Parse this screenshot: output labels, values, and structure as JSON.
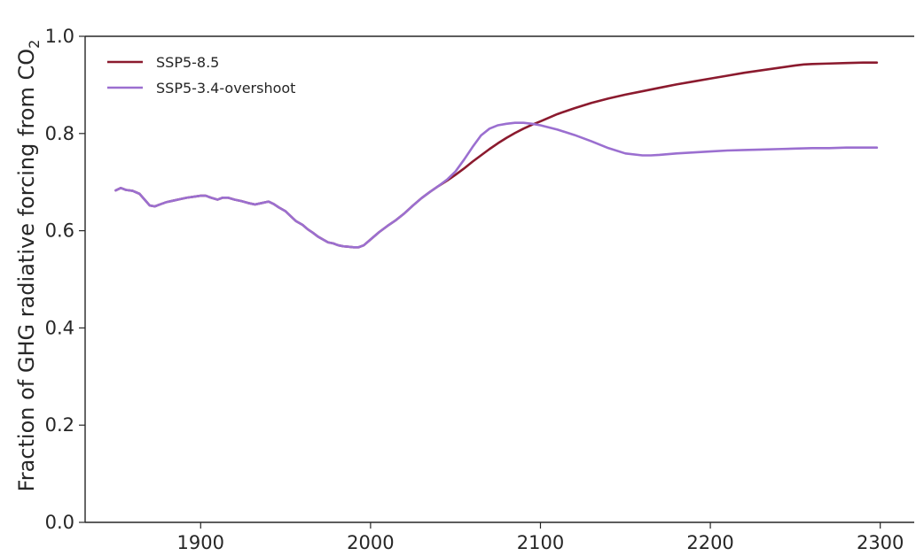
{
  "chart_data": {
    "type": "line",
    "title": "",
    "xlabel": "",
    "ylabel": "Fraction of GHG radiative forcing from CO",
    "ylabel_subscript": "2",
    "xlim": [
      1832,
      2320
    ],
    "ylim": [
      0.0,
      1.0
    ],
    "xticks": [
      1900,
      2000,
      2100,
      2200,
      2300
    ],
    "yticks": [
      0.0,
      0.2,
      0.4,
      0.6,
      0.8,
      1.0
    ],
    "xtick_labels": [
      "1900",
      "2000",
      "2100",
      "2200",
      "2300"
    ],
    "ytick_labels": [
      "0.0",
      "0.2",
      "0.4",
      "0.6",
      "0.8",
      "1.0"
    ],
    "grid": false,
    "legend_position": "top-left",
    "series": [
      {
        "name": "SSP5-8.5",
        "color": "#8b1a2e",
        "x": [
          1850,
          1853,
          1856,
          1860,
          1864,
          1866,
          1868,
          1870,
          1873,
          1876,
          1880,
          1884,
          1888,
          1892,
          1896,
          1900,
          1903,
          1906,
          1910,
          1913,
          1916,
          1920,
          1924,
          1928,
          1932,
          1936,
          1940,
          1943,
          1946,
          1950,
          1953,
          1956,
          1960,
          1963,
          1966,
          1969,
          1972,
          1975,
          1978,
          1981,
          1984,
          1987,
          1990,
          1993,
          1996,
          2000,
          2005,
          2010,
          2015,
          2020,
          2025,
          2030,
          2035,
          2040,
          2045,
          2050,
          2055,
          2060,
          2065,
          2070,
          2075,
          2080,
          2085,
          2090,
          2095,
          2100,
          2110,
          2120,
          2130,
          2140,
          2150,
          2160,
          2170,
          2180,
          2190,
          2200,
          2210,
          2220,
          2230,
          2240,
          2250,
          2255,
          2260,
          2270,
          2280,
          2290,
          2298
        ],
        "values": [
          0.683,
          0.688,
          0.684,
          0.682,
          0.676,
          0.668,
          0.66,
          0.652,
          0.65,
          0.654,
          0.659,
          0.662,
          0.665,
          0.668,
          0.67,
          0.672,
          0.672,
          0.668,
          0.664,
          0.668,
          0.668,
          0.664,
          0.661,
          0.657,
          0.654,
          0.657,
          0.66,
          0.655,
          0.648,
          0.64,
          0.63,
          0.62,
          0.612,
          0.603,
          0.596,
          0.588,
          0.582,
          0.576,
          0.574,
          0.57,
          0.568,
          0.567,
          0.566,
          0.566,
          0.57,
          0.582,
          0.597,
          0.61,
          0.622,
          0.636,
          0.652,
          0.667,
          0.68,
          0.692,
          0.703,
          0.715,
          0.728,
          0.742,
          0.755,
          0.768,
          0.78,
          0.791,
          0.801,
          0.81,
          0.818,
          0.825,
          0.84,
          0.852,
          0.863,
          0.872,
          0.88,
          0.887,
          0.894,
          0.901,
          0.907,
          0.913,
          0.919,
          0.925,
          0.93,
          0.935,
          0.94,
          0.942,
          0.943,
          0.944,
          0.945,
          0.946,
          0.946
        ]
      },
      {
        "name": "SSP5-3.4-overshoot",
        "color": "#9b6fd0",
        "x": [
          1850,
          1853,
          1856,
          1860,
          1864,
          1866,
          1868,
          1870,
          1873,
          1876,
          1880,
          1884,
          1888,
          1892,
          1896,
          1900,
          1903,
          1906,
          1910,
          1913,
          1916,
          1920,
          1924,
          1928,
          1932,
          1936,
          1940,
          1943,
          1946,
          1950,
          1953,
          1956,
          1960,
          1963,
          1966,
          1969,
          1972,
          1975,
          1978,
          1981,
          1984,
          1987,
          1990,
          1993,
          1996,
          2000,
          2005,
          2010,
          2015,
          2020,
          2025,
          2030,
          2035,
          2040,
          2045,
          2050,
          2055,
          2060,
          2065,
          2070,
          2075,
          2080,
          2085,
          2090,
          2095,
          2100,
          2110,
          2120,
          2130,
          2140,
          2150,
          2160,
          2165,
          2170,
          2180,
          2190,
          2200,
          2210,
          2220,
          2230,
          2240,
          2250,
          2260,
          2270,
          2280,
          2290,
          2298
        ],
        "values": [
          0.683,
          0.688,
          0.684,
          0.682,
          0.676,
          0.668,
          0.66,
          0.652,
          0.65,
          0.654,
          0.659,
          0.662,
          0.665,
          0.668,
          0.67,
          0.672,
          0.672,
          0.668,
          0.664,
          0.668,
          0.668,
          0.664,
          0.661,
          0.657,
          0.654,
          0.657,
          0.66,
          0.655,
          0.648,
          0.64,
          0.63,
          0.62,
          0.612,
          0.603,
          0.596,
          0.588,
          0.582,
          0.576,
          0.574,
          0.57,
          0.568,
          0.567,
          0.566,
          0.566,
          0.57,
          0.582,
          0.597,
          0.61,
          0.622,
          0.636,
          0.652,
          0.667,
          0.68,
          0.692,
          0.705,
          0.722,
          0.746,
          0.772,
          0.796,
          0.81,
          0.817,
          0.82,
          0.822,
          0.822,
          0.82,
          0.817,
          0.808,
          0.797,
          0.784,
          0.77,
          0.759,
          0.755,
          0.755,
          0.756,
          0.759,
          0.761,
          0.763,
          0.765,
          0.766,
          0.767,
          0.768,
          0.769,
          0.77,
          0.77,
          0.771,
          0.771,
          0.771
        ]
      }
    ]
  }
}
